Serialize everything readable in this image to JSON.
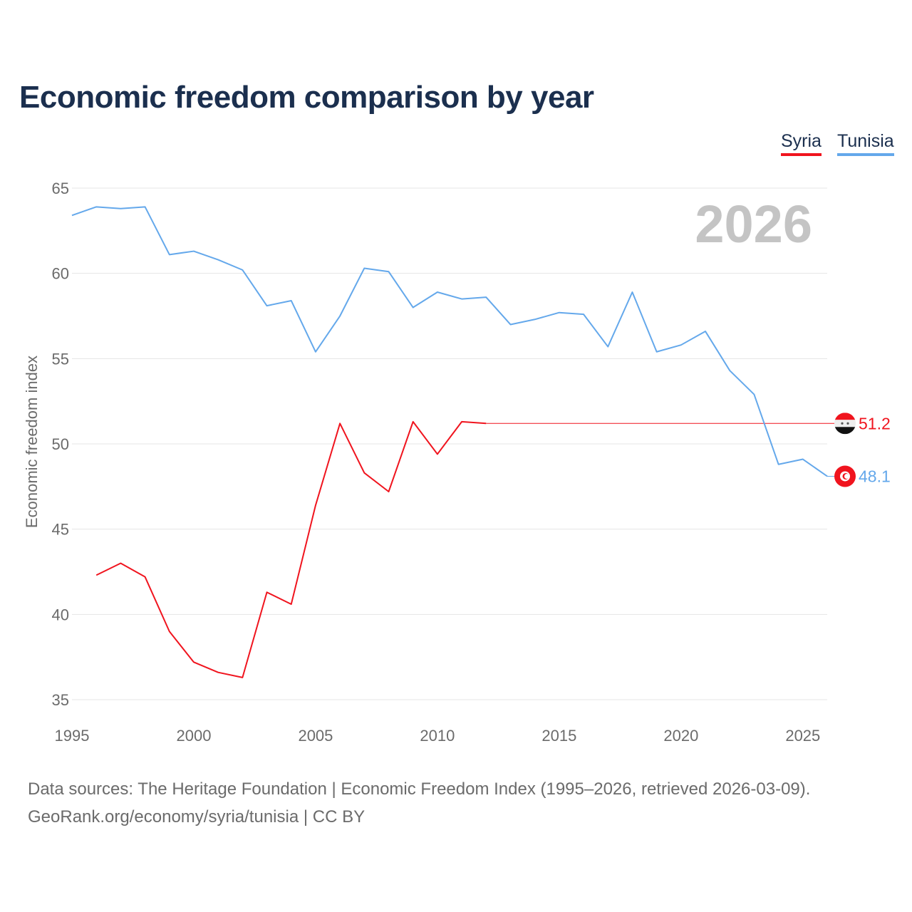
{
  "title": "Economic freedom comparison by year",
  "footer": {
    "line1": "Data sources: The Heritage Foundation | Economic Freedom Index (1995–2026, retrieved 2026-03-09).",
    "line2": "GeoRank.org/economy/syria/tunisia | CC BY"
  },
  "chart_data": {
    "type": "line",
    "title": "Economic freedom comparison by year",
    "xlabel": "",
    "ylabel": "Economic freedom index",
    "xlim": [
      1995,
      2026
    ],
    "ylim": [
      35,
      65
    ],
    "xticks": [
      "1995",
      "2000",
      "2005",
      "2010",
      "2015",
      "2020",
      "2025"
    ],
    "yticks": [
      "35",
      "40",
      "45",
      "50",
      "55",
      "60",
      "65"
    ],
    "year_label": "2026",
    "grid": true,
    "legend_placement": "top-right",
    "series": [
      {
        "name": "Syria",
        "color": "#f0141e",
        "x": [
          1996,
          1997,
          1998,
          1999,
          2000,
          2001,
          2002,
          2003,
          2004,
          2005,
          2006,
          2007,
          2008,
          2009,
          2010,
          2011,
          2012
        ],
        "values": [
          42.3,
          43.0,
          42.2,
          39.0,
          37.2,
          36.6,
          36.3,
          41.3,
          40.6,
          46.4,
          51.2,
          48.3,
          47.2,
          51.3,
          49.4,
          51.3,
          51.2
        ],
        "carried_forward_to": 2026,
        "end_label": "51.2"
      },
      {
        "name": "Tunisia",
        "color": "#64a8eb",
        "x": [
          1995,
          1996,
          1997,
          1998,
          1999,
          2000,
          2001,
          2002,
          2003,
          2004,
          2005,
          2006,
          2007,
          2008,
          2009,
          2010,
          2011,
          2012,
          2013,
          2014,
          2015,
          2016,
          2017,
          2018,
          2019,
          2020,
          2021,
          2022,
          2023,
          2024,
          2025,
          2026
        ],
        "values": [
          63.4,
          63.9,
          63.8,
          63.9,
          61.1,
          61.3,
          60.8,
          60.2,
          58.1,
          58.4,
          55.4,
          57.5,
          60.3,
          60.1,
          58.0,
          58.9,
          58.5,
          58.6,
          57.0,
          57.3,
          57.7,
          57.6,
          55.7,
          58.9,
          55.4,
          55.8,
          56.6,
          54.3,
          52.9,
          48.8,
          49.1,
          48.1
        ],
        "end_label": "48.1"
      }
    ]
  }
}
